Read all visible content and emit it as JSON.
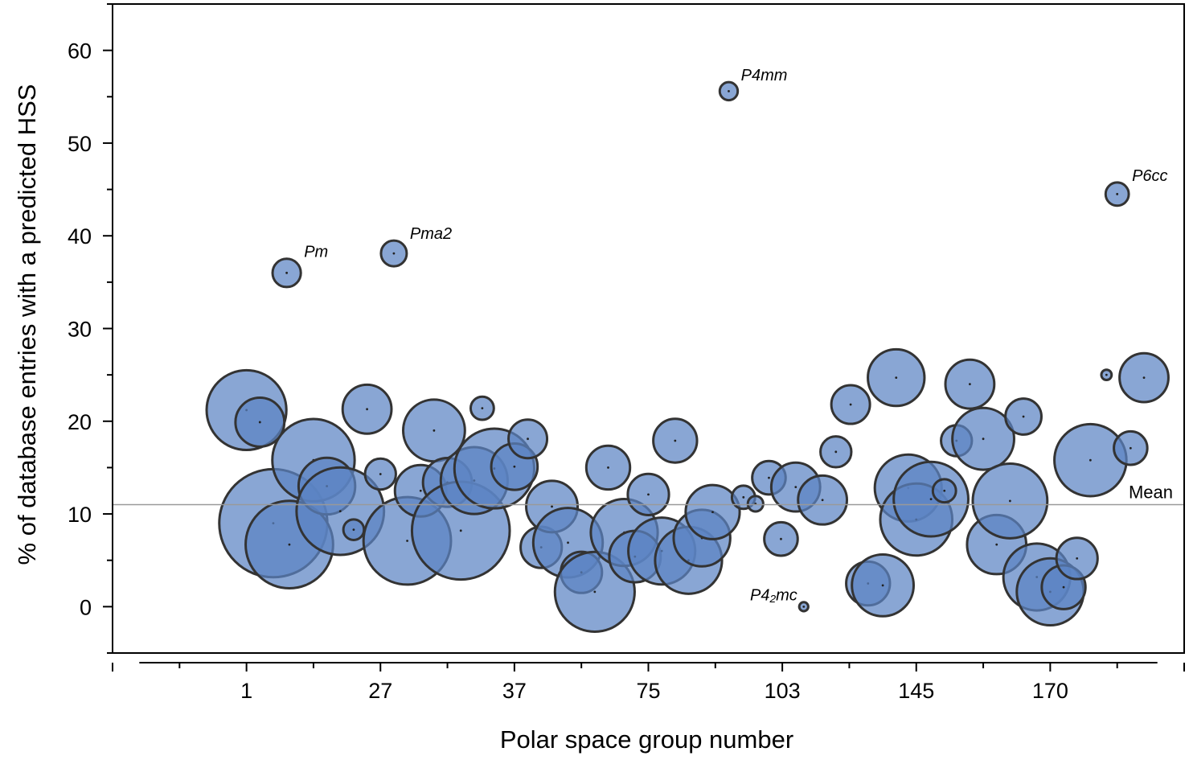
{
  "chart_data": {
    "type": "scatter",
    "variant": "bubble",
    "xlabel": "Polar space group number",
    "ylabel": "% of database entries with a predicted HSS",
    "ylim": [
      -5,
      65
    ],
    "yticks": [
      0,
      10,
      20,
      30,
      40,
      50,
      60
    ],
    "x_categories_labeled": [
      "1",
      "27",
      "37",
      "75",
      "103",
      "145",
      "170"
    ],
    "x_label_positions_index": [
      1,
      11,
      21,
      31,
      41,
      51,
      61
    ],
    "x_index_range": [
      -9,
      71
    ],
    "grid": false,
    "bubble_color": "#5b84c4",
    "bubble_edge_color": "#333333",
    "mean": {
      "value": 11,
      "label": "Mean",
      "color": "#999999"
    },
    "points": [
      {
        "x": 1,
        "y": 21.2,
        "size": 3.1
      },
      {
        "x": 2,
        "y": 19.9,
        "size": 1.9
      },
      {
        "x": 3,
        "y": 9.0,
        "size": 4.2
      },
      {
        "x": 4,
        "y": 36.0,
        "size": 1.1,
        "label": "Pm"
      },
      {
        "x": 4.2,
        "y": 6.7,
        "size": 3.4
      },
      {
        "x": 6,
        "y": 15.8,
        "size": 3.2
      },
      {
        "x": 7,
        "y": 13.0,
        "size": 2.2
      },
      {
        "x": 8,
        "y": 10.3,
        "size": 3.4
      },
      {
        "x": 9,
        "y": 8.3,
        "size": 0.8
      },
      {
        "x": 10,
        "y": 21.3,
        "size": 1.9
      },
      {
        "x": 11,
        "y": 14.3,
        "size": 1.2
      },
      {
        "x": 12,
        "y": 38.1,
        "size": 1.0,
        "label": "Pma2"
      },
      {
        "x": 13,
        "y": 7.1,
        "size": 3.4
      },
      {
        "x": 14,
        "y": 12.5,
        "size": 2.0
      },
      {
        "x": 15,
        "y": 19.0,
        "size": 2.4
      },
      {
        "x": 16,
        "y": 13.4,
        "size": 1.9
      },
      {
        "x": 17,
        "y": 8.2,
        "size": 3.8
      },
      {
        "x": 18,
        "y": 13.6,
        "size": 2.6
      },
      {
        "x": 18.6,
        "y": 21.4,
        "size": 0.9
      },
      {
        "x": 19.5,
        "y": 14.9,
        "size": 3.1
      },
      {
        "x": 21,
        "y": 15.1,
        "size": 1.8
      },
      {
        "x": 22,
        "y": 18.1,
        "size": 1.5
      },
      {
        "x": 23,
        "y": 6.4,
        "size": 1.6
      },
      {
        "x": 23.8,
        "y": 10.8,
        "size": 2.0
      },
      {
        "x": 25,
        "y": 6.9,
        "size": 2.7
      },
      {
        "x": 26,
        "y": 3.7,
        "size": 1.6
      },
      {
        "x": 27,
        "y": 1.6,
        "size": 3.1
      },
      {
        "x": 28,
        "y": 15.0,
        "size": 1.7
      },
      {
        "x": 29.2,
        "y": 8.0,
        "size": 2.6
      },
      {
        "x": 30,
        "y": 5.4,
        "size": 2.0
      },
      {
        "x": 31,
        "y": 12.1,
        "size": 1.6
      },
      {
        "x": 32,
        "y": 6.0,
        "size": 2.6
      },
      {
        "x": 33,
        "y": 17.9,
        "size": 1.7
      },
      {
        "x": 34,
        "y": 5.0,
        "size": 2.6
      },
      {
        "x": 35,
        "y": 7.4,
        "size": 2.2
      },
      {
        "x": 35.8,
        "y": 10.2,
        "size": 2.1
      },
      {
        "x": 37,
        "y": 55.6,
        "size": 0.7,
        "label": "P4mm"
      },
      {
        "x": 38.1,
        "y": 11.8,
        "size": 0.9
      },
      {
        "x": 39,
        "y": 11.1,
        "size": 0.6
      },
      {
        "x": 40,
        "y": 13.9,
        "size": 1.3
      },
      {
        "x": 40.9,
        "y": 7.3,
        "size": 1.3
      },
      {
        "x": 42,
        "y": 12.9,
        "size": 1.9
      },
      {
        "x": 42.6,
        "y": 0.0,
        "size": 0.35,
        "label": "P4₂mc"
      },
      {
        "x": 44,
        "y": 11.5,
        "size": 1.9
      },
      {
        "x": 45,
        "y": 16.7,
        "size": 1.2
      },
      {
        "x": 46.1,
        "y": 21.8,
        "size": 1.5
      },
      {
        "x": 47.4,
        "y": 2.5,
        "size": 1.7
      },
      {
        "x": 48.5,
        "y": 2.3,
        "size": 2.4
      },
      {
        "x": 49.5,
        "y": 24.7,
        "size": 2.2
      },
      {
        "x": 50.4,
        "y": 12.8,
        "size": 2.6
      },
      {
        "x": 51,
        "y": 9.4,
        "size": 2.8
      },
      {
        "x": 52.1,
        "y": 11.6,
        "size": 2.9
      },
      {
        "x": 53.1,
        "y": 12.5,
        "size": 0.9
      },
      {
        "x": 54,
        "y": 17.9,
        "size": 1.2
      },
      {
        "x": 55,
        "y": 24.0,
        "size": 1.9
      },
      {
        "x": 56,
        "y": 18.1,
        "size": 2.4
      },
      {
        "x": 57,
        "y": 6.7,
        "size": 2.3
      },
      {
        "x": 58,
        "y": 11.4,
        "size": 2.9
      },
      {
        "x": 59,
        "y": 20.5,
        "size": 1.4
      },
      {
        "x": 60,
        "y": 3.2,
        "size": 2.6
      },
      {
        "x": 61,
        "y": 1.6,
        "size": 2.6
      },
      {
        "x": 62,
        "y": 2.1,
        "size": 1.7
      },
      {
        "x": 63,
        "y": 5.2,
        "size": 1.6
      },
      {
        "x": 64,
        "y": 15.8,
        "size": 2.8
      },
      {
        "x": 65.2,
        "y": 25.0,
        "size": 0.4
      },
      {
        "x": 66,
        "y": 44.5,
        "size": 0.9,
        "label": "P6cc"
      },
      {
        "x": 67,
        "y": 17.1,
        "size": 1.3
      },
      {
        "x": 68,
        "y": 24.7,
        "size": 1.9
      }
    ]
  }
}
